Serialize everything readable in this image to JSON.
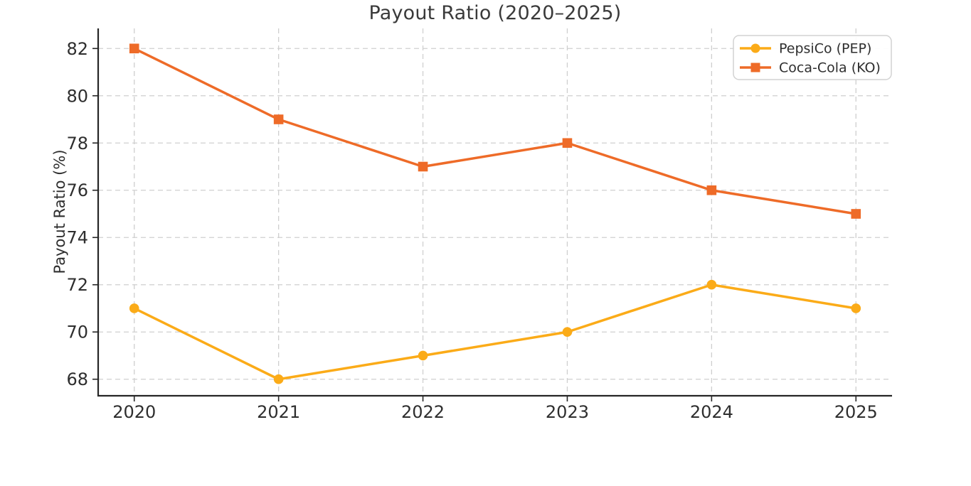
{
  "chart_data": {
    "type": "line",
    "title": "Payout Ratio (2020–2025)",
    "xlabel": "",
    "ylabel": "Payout Ratio (%)",
    "x": [
      2020,
      2021,
      2022,
      2023,
      2024,
      2025
    ],
    "x_tick_labels": [
      "2020",
      "2021",
      "2022",
      "2023",
      "2024",
      "2025"
    ],
    "y_ticks": [
      68,
      70,
      72,
      74,
      76,
      78,
      80,
      82
    ],
    "xlim": [
      2019.75,
      2025.25
    ],
    "ylim": [
      67.3,
      82.85
    ],
    "grid": true,
    "grid_style": "dashed",
    "legend_position": "upper right",
    "series": [
      {
        "name": "PepsiCo (PEP)",
        "values": [
          71,
          68,
          69,
          70,
          72,
          71
        ],
        "color": "#fbab18",
        "marker": "circle"
      },
      {
        "name": "Coca-Cola (KO)",
        "values": [
          82,
          79,
          77,
          78,
          76,
          75
        ],
        "color": "#ee6b28",
        "marker": "square"
      }
    ],
    "colors": {
      "grid": "#cfcfcf",
      "axis": "#262626",
      "tick_text": "#2e2e2e",
      "title_text": "#3a3a3a",
      "legend_border": "#d2d2d2",
      "legend_bg": "#ffffff"
    }
  }
}
